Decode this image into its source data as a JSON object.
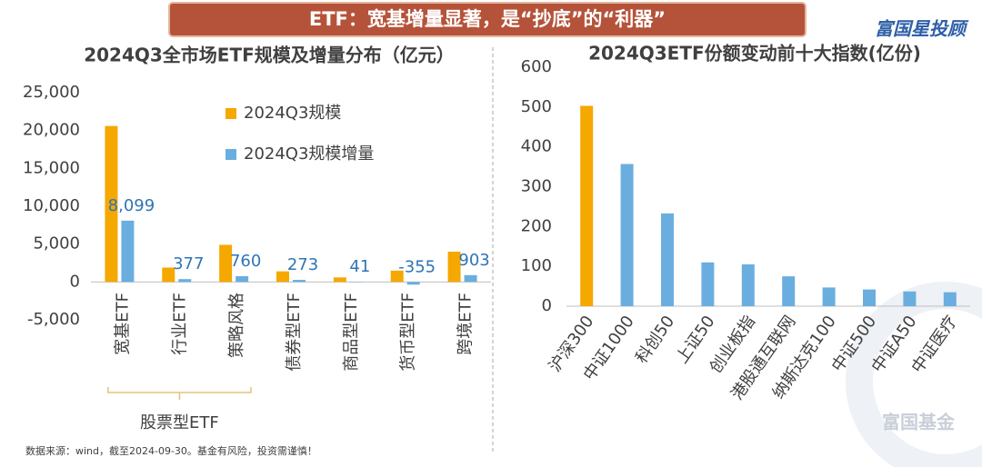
{
  "header": {
    "title": "ETF：宽基增量显著，是“抄底”的“利器”",
    "brand": "富国星投顾",
    "watermark": "富国基金"
  },
  "footer": {
    "source": "数据来源：wind，截至2024-09-30。基金有风险，投资需谨慎！"
  },
  "chart_data": [
    {
      "type": "grouped-bar",
      "title": "2024Q3全市场ETF规模及增量分布（亿元）",
      "categories": [
        "宽基ETF",
        "行业ETF",
        "策略风格",
        "债券型ETF",
        "商品型ETF",
        "货币型ETF",
        "跨境ETF"
      ],
      "group_label": "股票型ETF",
      "series": [
        {
          "name": "2024Q3规模",
          "color": "#f5a800",
          "values": [
            20600,
            1900,
            4900,
            1400,
            600,
            1500,
            4000
          ]
        },
        {
          "name": "2024Q3规模增量",
          "color": "#6aaee0",
          "values": [
            8099,
            377,
            760,
            273,
            41,
            -355,
            903
          ],
          "value_labels": [
            "8,099",
            "377",
            "760",
            "273",
            "41",
            "-355",
            "903"
          ],
          "label_color": "#2e75b6"
        }
      ],
      "ylim": [
        -5000,
        25000
      ],
      "yticks": [
        {
          "value": 25000,
          "label": "25,000"
        },
        {
          "value": 20000,
          "label": "20,000"
        },
        {
          "value": 15000,
          "label": "15,000"
        },
        {
          "value": 10000,
          "label": "10,000"
        },
        {
          "value": 5000,
          "label": "5,000"
        },
        0,
        {
          "value": -5000,
          "label": "-5,000"
        }
      ],
      "grid": false
    },
    {
      "type": "bar",
      "title": "2024Q3ETF份额变动前十大指数(亿份)",
      "categories": [
        "沪深300",
        "中证1000",
        "科创50",
        "上证50",
        "创业板指",
        "港股通互联网",
        "纳斯达克100",
        "中证500",
        "中证A50",
        "中证医疗"
      ],
      "values": [
        503,
        357,
        233,
        110,
        105,
        75,
        47,
        42,
        37,
        35
      ],
      "colors": [
        "#f5a800",
        "#6aaee0",
        "#6aaee0",
        "#6aaee0",
        "#6aaee0",
        "#6aaee0",
        "#6aaee0",
        "#6aaee0",
        "#6aaee0",
        "#6aaee0"
      ],
      "ylim": [
        0,
        600
      ],
      "yticks": [
        0,
        100,
        200,
        300,
        400,
        500,
        600
      ],
      "grid": false
    }
  ]
}
